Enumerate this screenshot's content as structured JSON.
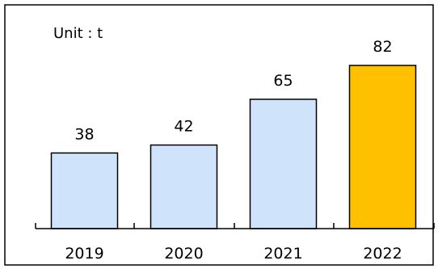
{
  "chart_data": {
    "type": "bar",
    "unit_label": "Unit : t",
    "categories": [
      "2019",
      "2020",
      "2021",
      "2022"
    ],
    "values": [
      38,
      42,
      65,
      82
    ],
    "bar_colors": [
      "#cfe3fb",
      "#cfe3fb",
      "#cfe3fb",
      "#ffc000"
    ],
    "outline_color": "#000000",
    "grid": false,
    "legend": "none"
  }
}
